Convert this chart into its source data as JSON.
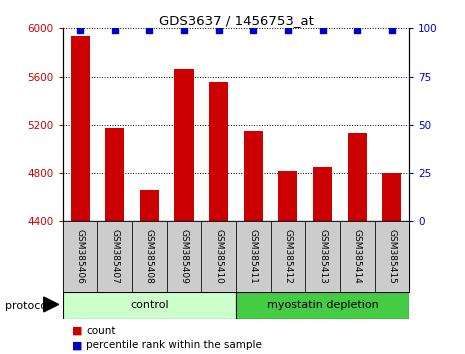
{
  "title": "GDS3637 / 1456753_at",
  "categories": [
    "GSM385406",
    "GSM385407",
    "GSM385408",
    "GSM385409",
    "GSM385410",
    "GSM385411",
    "GSM385412",
    "GSM385413",
    "GSM385414",
    "GSM385415"
  ],
  "bar_values": [
    5940,
    5170,
    4660,
    5660,
    5555,
    5150,
    4820,
    4850,
    5130,
    4800
  ],
  "percentile_values": [
    99,
    99,
    99,
    99,
    99,
    99,
    99,
    99,
    99,
    99
  ],
  "bar_color": "#cc0000",
  "percentile_color": "#0000cc",
  "ylim_left": [
    4400,
    6000
  ],
  "ylim_right": [
    0,
    100
  ],
  "yticks_left": [
    4400,
    4800,
    5200,
    5600,
    6000
  ],
  "yticks_right": [
    0,
    25,
    50,
    75,
    100
  ],
  "grid_color": "#000000",
  "groups": [
    {
      "label": "control",
      "start": 0,
      "end": 5,
      "color": "#ccffcc"
    },
    {
      "label": "myostatin depletion",
      "start": 5,
      "end": 10,
      "color": "#44cc44"
    }
  ],
  "group_row_label": "protocol",
  "legend_count_label": "count",
  "legend_percentile_label": "percentile rank within the sample",
  "background_color": "#ffffff",
  "tick_label_color_left": "#cc0000",
  "tick_label_color_right": "#0000cc",
  "bar_width": 0.55,
  "xlabel_bg_color": "#cccccc",
  "bar_bottom": 4400
}
